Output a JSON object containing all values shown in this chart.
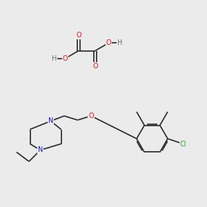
{
  "background_color": "#ebebeb",
  "colors": {
    "C": "#303030",
    "O": "#ee1111",
    "N": "#1111cc",
    "Cl": "#22aa22",
    "H": "#607070",
    "bond": "#303030"
  },
  "lw": 1.3,
  "fs": 7.0
}
